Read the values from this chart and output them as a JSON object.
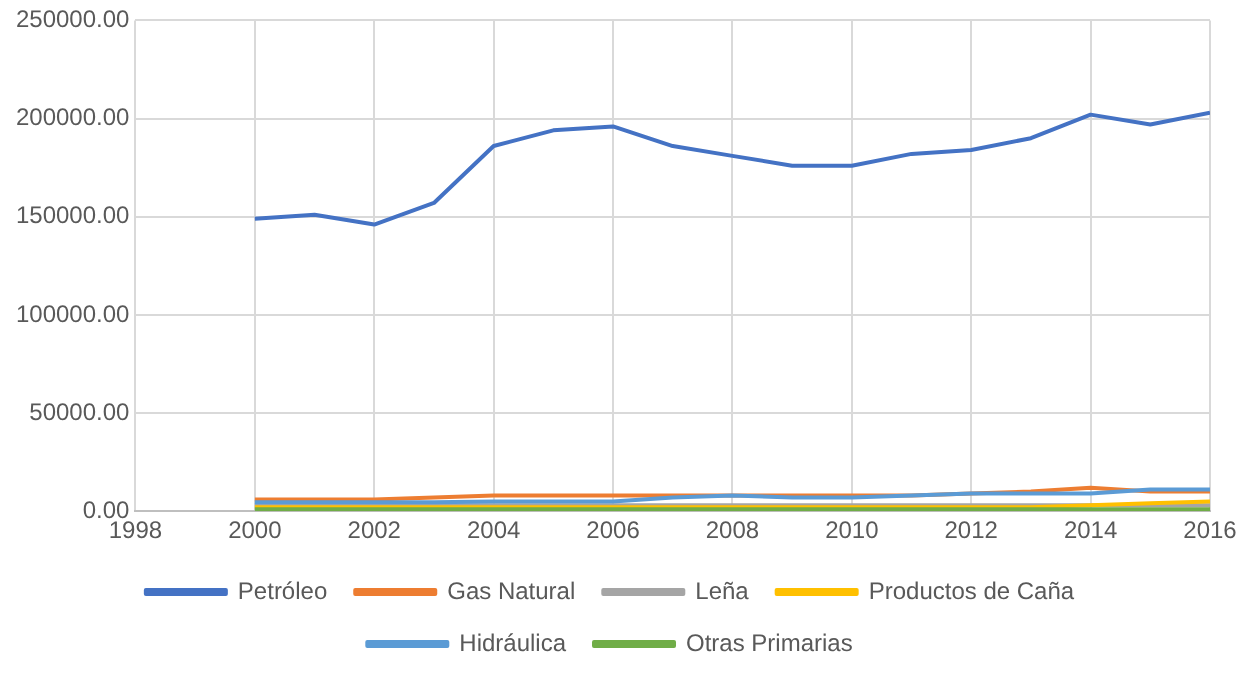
{
  "chart_data": {
    "type": "line",
    "x": [
      2000,
      2001,
      2002,
      2003,
      2004,
      2005,
      2006,
      2007,
      2008,
      2009,
      2010,
      2011,
      2012,
      2013,
      2014,
      2015,
      2016
    ],
    "series": [
      {
        "name": "Petróleo",
        "color": "#4472c4",
        "values": [
          149000,
          151000,
          146000,
          157000,
          186000,
          194000,
          196000,
          186000,
          181000,
          176000,
          176000,
          182000,
          184000,
          190000,
          202000,
          197000,
          203000
        ]
      },
      {
        "name": "Gas Natural",
        "color": "#ed7d31",
        "values": [
          6000,
          6000,
          6000,
          7000,
          8000,
          8000,
          8000,
          8000,
          8000,
          8000,
          8000,
          8000,
          9000,
          10000,
          12000,
          10000,
          10000
        ]
      },
      {
        "name": "Leña",
        "color": "#a5a5a5",
        "values": [
          3000,
          3000,
          3000,
          3000,
          3000,
          3000,
          3000,
          3000,
          3000,
          3000,
          3000,
          3000,
          3000,
          3000,
          3000,
          3000,
          3000
        ]
      },
      {
        "name": "Productos de Caña",
        "color": "#ffc000",
        "values": [
          2000,
          2000,
          2000,
          2000,
          2000,
          2000,
          2000,
          2000,
          2000,
          2000,
          2000,
          2000,
          2000,
          2000,
          3000,
          4000,
          5000
        ]
      },
      {
        "name": "Hidráulica",
        "color": "#5b9bd5",
        "values": [
          4500,
          4500,
          4500,
          4500,
          5000,
          5000,
          5000,
          7000,
          8000,
          7000,
          7000,
          8000,
          9000,
          9000,
          9000,
          11000,
          11000
        ]
      },
      {
        "name": "Otras Primarias",
        "color": "#70ad47",
        "values": [
          1000,
          1000,
          1000,
          1000,
          1000,
          1000,
          1000,
          1000,
          1000,
          1000,
          1000,
          1000,
          1000,
          1000,
          1000,
          1000,
          1000
        ]
      }
    ],
    "xlim": [
      1998,
      2016
    ],
    "xticks": [
      1998,
      2000,
      2002,
      2004,
      2006,
      2008,
      2010,
      2012,
      2014,
      2016
    ],
    "ylim": [
      0,
      250000
    ],
    "yticks": [
      {
        "value": 0,
        "label": "0.00"
      },
      {
        "value": 50000,
        "label": "50000.00"
      },
      {
        "value": 100000,
        "label": "100000.00"
      },
      {
        "value": 150000,
        "label": "150000.00"
      },
      {
        "value": 200000,
        "label": "200000.00"
      },
      {
        "value": 250000,
        "label": "250000.00"
      }
    ],
    "grid": true,
    "legend": "bottom",
    "marker": "none",
    "line_style": "solid"
  }
}
